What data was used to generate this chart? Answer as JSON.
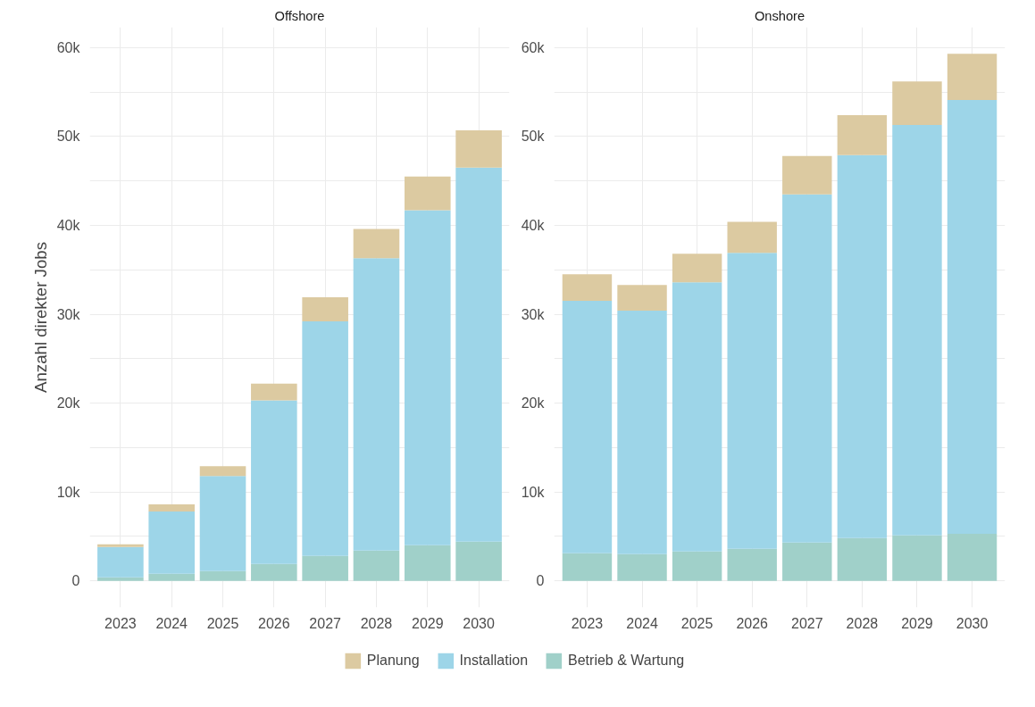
{
  "chart_data": [
    {
      "type": "bar",
      "title": "Offshore",
      "ylabel": "Anzahl direkter Jobs",
      "stacked": true,
      "grid": true,
      "legend": "bottom",
      "categories": [
        "2023",
        "2024",
        "2025",
        "2026",
        "2027",
        "2028",
        "2029",
        "2030"
      ],
      "ylim": [
        -3000,
        62300
      ],
      "yticks": [
        0,
        {
          "value": 5000,
          "label": null
        },
        {
          "value": 10000,
          "label": "10k"
        },
        {
          "value": 15000,
          "label": null
        },
        {
          "value": 20000,
          "label": "20k"
        },
        {
          "value": 25000,
          "label": null
        },
        {
          "value": 30000,
          "label": "30k"
        },
        {
          "value": 35000,
          "label": null
        },
        {
          "value": 40000,
          "label": "40k"
        },
        {
          "value": 45000,
          "label": null
        },
        {
          "value": 50000,
          "label": "50k"
        },
        {
          "value": 55000,
          "label": null
        },
        {
          "value": 60000,
          "label": "60k"
        }
      ],
      "series": [
        {
          "name": "Betrieb & Wartung",
          "color": "#a0d0c9",
          "values": [
            400,
            800,
            1100,
            1900,
            2800,
            3400,
            4000,
            4400
          ]
        },
        {
          "name": "Installation",
          "color": "#9dd5e8",
          "values": [
            3400,
            7000,
            10700,
            18400,
            26400,
            32900,
            37700,
            42100
          ]
        },
        {
          "name": "Planung",
          "color": "#dccaa1",
          "values": [
            300,
            800,
            1100,
            1900,
            2700,
            3300,
            3800,
            4200
          ]
        }
      ]
    },
    {
      "type": "bar",
      "title": "Onshore",
      "stacked": true,
      "grid": true,
      "categories": [
        "2023",
        "2024",
        "2025",
        "2026",
        "2027",
        "2028",
        "2029",
        "2030"
      ],
      "ylim": [
        -3000,
        62300
      ],
      "yticks": [
        0,
        {
          "value": 5000,
          "label": null
        },
        {
          "value": 10000,
          "label": "10k"
        },
        {
          "value": 15000,
          "label": null
        },
        {
          "value": 20000,
          "label": "20k"
        },
        {
          "value": 25000,
          "label": null
        },
        {
          "value": 30000,
          "label": "30k"
        },
        {
          "value": 35000,
          "label": null
        },
        {
          "value": 40000,
          "label": "40k"
        },
        {
          "value": 45000,
          "label": null
        },
        {
          "value": 50000,
          "label": "50k"
        },
        {
          "value": 55000,
          "label": null
        },
        {
          "value": 60000,
          "label": "60k"
        }
      ],
      "series": [
        {
          "color": "#a0d0c9",
          "values": [
            3100,
            3000,
            3300,
            3600,
            4300,
            4800,
            5100,
            5300
          ]
        },
        {
          "color": "#9dd5e8",
          "values": [
            28400,
            27400,
            30300,
            33300,
            39200,
            43100,
            46200,
            48800
          ]
        },
        {
          "color": "#dccaa1",
          "values": [
            3000,
            2900,
            3200,
            3500,
            4300,
            4500,
            4900,
            5200
          ]
        }
      ]
    }
  ]
}
